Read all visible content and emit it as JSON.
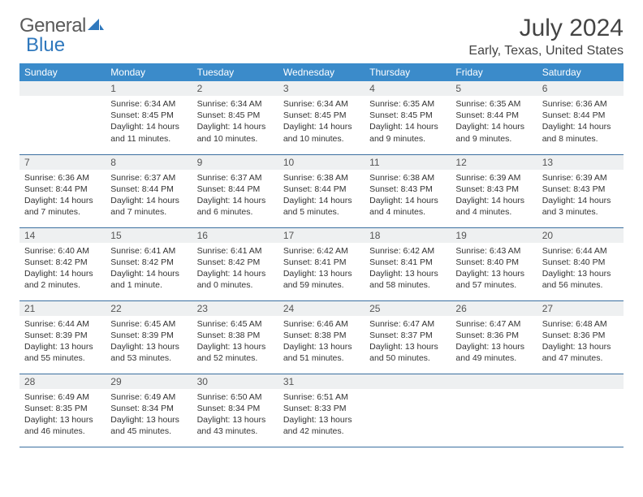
{
  "logo": {
    "text1": "General",
    "text2": "Blue"
  },
  "title": "July 2024",
  "location": "Early, Texas, United States",
  "header_bg": "#3b8bca",
  "header_fg": "#ffffff",
  "daynum_bg": "#eef0f1",
  "row_border": "#3b6fa0",
  "weekdays": [
    "Sunday",
    "Monday",
    "Tuesday",
    "Wednesday",
    "Thursday",
    "Friday",
    "Saturday"
  ],
  "weeks": [
    [
      {
        "n": "",
        "lines": []
      },
      {
        "n": "1",
        "lines": [
          "Sunrise: 6:34 AM",
          "Sunset: 8:45 PM",
          "Daylight: 14 hours",
          "and 11 minutes."
        ]
      },
      {
        "n": "2",
        "lines": [
          "Sunrise: 6:34 AM",
          "Sunset: 8:45 PM",
          "Daylight: 14 hours",
          "and 10 minutes."
        ]
      },
      {
        "n": "3",
        "lines": [
          "Sunrise: 6:34 AM",
          "Sunset: 8:45 PM",
          "Daylight: 14 hours",
          "and 10 minutes."
        ]
      },
      {
        "n": "4",
        "lines": [
          "Sunrise: 6:35 AM",
          "Sunset: 8:45 PM",
          "Daylight: 14 hours",
          "and 9 minutes."
        ]
      },
      {
        "n": "5",
        "lines": [
          "Sunrise: 6:35 AM",
          "Sunset: 8:44 PM",
          "Daylight: 14 hours",
          "and 9 minutes."
        ]
      },
      {
        "n": "6",
        "lines": [
          "Sunrise: 6:36 AM",
          "Sunset: 8:44 PM",
          "Daylight: 14 hours",
          "and 8 minutes."
        ]
      }
    ],
    [
      {
        "n": "7",
        "lines": [
          "Sunrise: 6:36 AM",
          "Sunset: 8:44 PM",
          "Daylight: 14 hours",
          "and 7 minutes."
        ]
      },
      {
        "n": "8",
        "lines": [
          "Sunrise: 6:37 AM",
          "Sunset: 8:44 PM",
          "Daylight: 14 hours",
          "and 7 minutes."
        ]
      },
      {
        "n": "9",
        "lines": [
          "Sunrise: 6:37 AM",
          "Sunset: 8:44 PM",
          "Daylight: 14 hours",
          "and 6 minutes."
        ]
      },
      {
        "n": "10",
        "lines": [
          "Sunrise: 6:38 AM",
          "Sunset: 8:44 PM",
          "Daylight: 14 hours",
          "and 5 minutes."
        ]
      },
      {
        "n": "11",
        "lines": [
          "Sunrise: 6:38 AM",
          "Sunset: 8:43 PM",
          "Daylight: 14 hours",
          "and 4 minutes."
        ]
      },
      {
        "n": "12",
        "lines": [
          "Sunrise: 6:39 AM",
          "Sunset: 8:43 PM",
          "Daylight: 14 hours",
          "and 4 minutes."
        ]
      },
      {
        "n": "13",
        "lines": [
          "Sunrise: 6:39 AM",
          "Sunset: 8:43 PM",
          "Daylight: 14 hours",
          "and 3 minutes."
        ]
      }
    ],
    [
      {
        "n": "14",
        "lines": [
          "Sunrise: 6:40 AM",
          "Sunset: 8:42 PM",
          "Daylight: 14 hours",
          "and 2 minutes."
        ]
      },
      {
        "n": "15",
        "lines": [
          "Sunrise: 6:41 AM",
          "Sunset: 8:42 PM",
          "Daylight: 14 hours",
          "and 1 minute."
        ]
      },
      {
        "n": "16",
        "lines": [
          "Sunrise: 6:41 AM",
          "Sunset: 8:42 PM",
          "Daylight: 14 hours",
          "and 0 minutes."
        ]
      },
      {
        "n": "17",
        "lines": [
          "Sunrise: 6:42 AM",
          "Sunset: 8:41 PM",
          "Daylight: 13 hours",
          "and 59 minutes."
        ]
      },
      {
        "n": "18",
        "lines": [
          "Sunrise: 6:42 AM",
          "Sunset: 8:41 PM",
          "Daylight: 13 hours",
          "and 58 minutes."
        ]
      },
      {
        "n": "19",
        "lines": [
          "Sunrise: 6:43 AM",
          "Sunset: 8:40 PM",
          "Daylight: 13 hours",
          "and 57 minutes."
        ]
      },
      {
        "n": "20",
        "lines": [
          "Sunrise: 6:44 AM",
          "Sunset: 8:40 PM",
          "Daylight: 13 hours",
          "and 56 minutes."
        ]
      }
    ],
    [
      {
        "n": "21",
        "lines": [
          "Sunrise: 6:44 AM",
          "Sunset: 8:39 PM",
          "Daylight: 13 hours",
          "and 55 minutes."
        ]
      },
      {
        "n": "22",
        "lines": [
          "Sunrise: 6:45 AM",
          "Sunset: 8:39 PM",
          "Daylight: 13 hours",
          "and 53 minutes."
        ]
      },
      {
        "n": "23",
        "lines": [
          "Sunrise: 6:45 AM",
          "Sunset: 8:38 PM",
          "Daylight: 13 hours",
          "and 52 minutes."
        ]
      },
      {
        "n": "24",
        "lines": [
          "Sunrise: 6:46 AM",
          "Sunset: 8:38 PM",
          "Daylight: 13 hours",
          "and 51 minutes."
        ]
      },
      {
        "n": "25",
        "lines": [
          "Sunrise: 6:47 AM",
          "Sunset: 8:37 PM",
          "Daylight: 13 hours",
          "and 50 minutes."
        ]
      },
      {
        "n": "26",
        "lines": [
          "Sunrise: 6:47 AM",
          "Sunset: 8:36 PM",
          "Daylight: 13 hours",
          "and 49 minutes."
        ]
      },
      {
        "n": "27",
        "lines": [
          "Sunrise: 6:48 AM",
          "Sunset: 8:36 PM",
          "Daylight: 13 hours",
          "and 47 minutes."
        ]
      }
    ],
    [
      {
        "n": "28",
        "lines": [
          "Sunrise: 6:49 AM",
          "Sunset: 8:35 PM",
          "Daylight: 13 hours",
          "and 46 minutes."
        ]
      },
      {
        "n": "29",
        "lines": [
          "Sunrise: 6:49 AM",
          "Sunset: 8:34 PM",
          "Daylight: 13 hours",
          "and 45 minutes."
        ]
      },
      {
        "n": "30",
        "lines": [
          "Sunrise: 6:50 AM",
          "Sunset: 8:34 PM",
          "Daylight: 13 hours",
          "and 43 minutes."
        ]
      },
      {
        "n": "31",
        "lines": [
          "Sunrise: 6:51 AM",
          "Sunset: 8:33 PM",
          "Daylight: 13 hours",
          "and 42 minutes."
        ]
      },
      {
        "n": "",
        "lines": []
      },
      {
        "n": "",
        "lines": []
      },
      {
        "n": "",
        "lines": []
      }
    ]
  ]
}
